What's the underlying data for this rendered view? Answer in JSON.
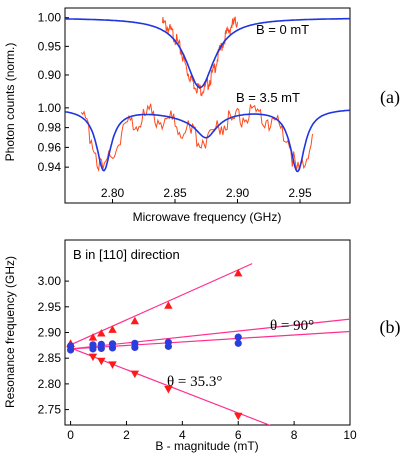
{
  "colors": {
    "raw": "#ff4a1c",
    "fit": "#1f35e0",
    "pink": "#ff2f8f",
    "red_marker": "#ff1a1a",
    "blue_marker": "#2a3ddd",
    "axis": "#000000"
  },
  "chart_data": [
    {
      "type": "line",
      "panel_label": "(a)",
      "xlabel": "Microwave frequency (GHz)",
      "ylabel": "Photon counts (norm.)",
      "x_ticks": [
        "2.80",
        "2.85",
        "2.90",
        "2.95"
      ],
      "xlim": [
        2.762,
        2.99
      ],
      "subplots": [
        {
          "annotation": "B = 0 mT",
          "ylim": [
            0.865,
            1.01
          ],
          "y_ticks": [
            "1.00",
            "0.95",
            "0.90"
          ],
          "series": [
            {
              "role": "measured",
              "x": [
                2.84,
                2.845,
                2.85,
                2.855,
                2.86,
                2.865,
                2.87,
                2.875,
                2.88,
                2.885,
                2.89,
                2.895,
                2.9
              ],
              "y": [
                0.995,
                0.985,
                0.97,
                0.945,
                0.91,
                0.89,
                0.878,
                0.883,
                0.905,
                0.94,
                0.97,
                0.99,
                0.998
              ]
            },
            {
              "role": "fit",
              "dips": [
                {
                  "center": 2.87,
                  "depth": 0.122,
                  "width": 0.014
                }
              ],
              "baseline": 1.0
            }
          ]
        },
        {
          "annotation": "B = 3.5 mT",
          "ylim": [
            0.927,
            1.012
          ],
          "y_ticks": [
            "1.00",
            "0.98",
            "0.96",
            "0.94"
          ],
          "series": [
            {
              "role": "measured",
              "x": [
                2.775,
                2.78,
                2.785,
                2.79,
                2.793,
                2.8,
                2.81,
                2.83,
                2.85,
                2.86,
                2.87,
                2.875,
                2.88,
                2.89,
                2.91,
                2.93,
                2.94,
                2.947,
                2.95,
                2.955,
                2.96
              ],
              "y": [
                0.992,
                0.985,
                0.968,
                0.945,
                0.936,
                0.96,
                0.985,
                0.997,
                0.99,
                0.98,
                0.972,
                0.975,
                0.98,
                0.99,
                0.996,
                0.99,
                0.975,
                0.94,
                0.935,
                0.955,
                0.98
              ]
            },
            {
              "role": "fit",
              "dips": [
                {
                  "center": 2.793,
                  "depth": 0.062,
                  "width": 0.007
                },
                {
                  "center": 2.875,
                  "depth": 0.022,
                  "width": 0.01
                },
                {
                  "center": 2.865,
                  "depth": 0.008,
                  "width": 0.03
                },
                {
                  "center": 2.948,
                  "depth": 0.063,
                  "width": 0.007
                }
              ],
              "baseline": 1.0
            }
          ]
        }
      ]
    },
    {
      "type": "scatter",
      "panel_label": "(b)",
      "annotation": "B in [110] direction",
      "xlabel": "B - magnitude (mT)",
      "ylabel": "Resonance frequency (GHz)",
      "xlim": [
        -0.2,
        10
      ],
      "ylim": [
        2.72,
        3.08
      ],
      "x_ticks": [
        "0",
        "2",
        "4",
        "6",
        "8",
        "10"
      ],
      "y_ticks": [
        "3.00",
        "2.95",
        "2.90",
        "2.85",
        "2.80",
        "2.75"
      ],
      "labels": {
        "theta_90": "θ = 90°",
        "theta_35": "θ = 35.3°"
      },
      "series": [
        {
          "marker": "triangle-up",
          "color": "red_marker",
          "x": [
            0,
            0.8,
            1.1,
            1.5,
            2.3,
            3.5,
            6.0
          ],
          "y": [
            2.878,
            2.89,
            2.898,
            2.905,
            2.922,
            2.952,
            3.015
          ]
        },
        {
          "marker": "triangle-down",
          "color": "red_marker",
          "x": [
            0,
            0.8,
            1.1,
            1.5,
            2.3,
            3.5,
            6.0
          ],
          "y": [
            2.868,
            2.853,
            2.845,
            2.838,
            2.82,
            2.79,
            2.738
          ]
        },
        {
          "marker": "circle",
          "color": "blue_marker",
          "x": [
            0,
            0,
            0.8,
            0.8,
            1.1,
            1.1,
            1.5,
            1.5,
            2.3,
            2.3,
            3.5,
            3.5,
            6.0,
            6.0
          ],
          "y": [
            2.866,
            2.874,
            2.868,
            2.876,
            2.869,
            2.877,
            2.87,
            2.878,
            2.871,
            2.879,
            2.873,
            2.881,
            2.879,
            2.891
          ]
        }
      ],
      "fit_lines": [
        {
          "x": [
            0,
            6.5
          ],
          "y": [
            2.876,
            3.034
          ]
        },
        {
          "x": [
            0,
            7.2
          ],
          "y": [
            2.87,
            2.718
          ]
        },
        {
          "x": [
            0,
            10
          ],
          "y": [
            2.868,
            2.926
          ]
        },
        {
          "x": [
            0,
            10
          ],
          "y": [
            2.868,
            2.902
          ]
        }
      ]
    }
  ]
}
